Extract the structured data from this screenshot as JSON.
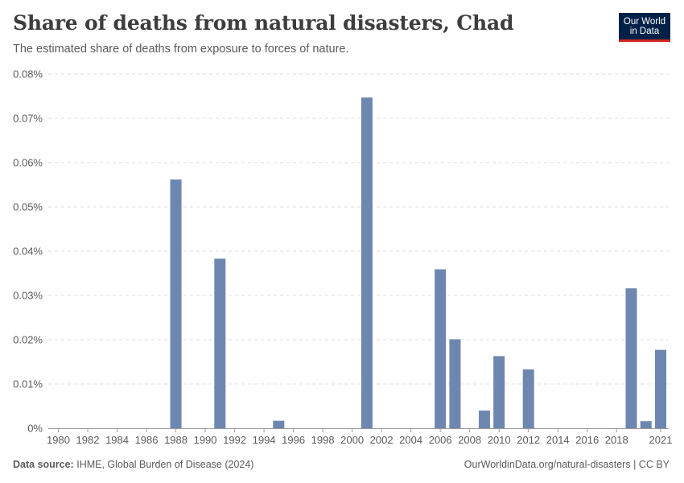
{
  "header": {
    "title": "Share of deaths from natural disasters, Chad",
    "subtitle": "The estimated share of deaths from exposure to forces of nature."
  },
  "logo": {
    "line1": "Our World",
    "line2": "in Data"
  },
  "footer": {
    "source_label": "Data source:",
    "source_text": "IHME, Global Burden of Disease (2024)",
    "right_text": "OurWorldinData.org/natural-disasters | CC BY"
  },
  "colors": {
    "bar": "#6d87b0",
    "grid": "#dddddd",
    "axis": "#999999"
  },
  "chart_data": {
    "type": "bar",
    "title": "Share of deaths from natural disasters, Chad",
    "xlabel": "",
    "ylabel": "",
    "ylim": [
      0,
      0.08
    ],
    "yticks": [
      0,
      0.01,
      0.02,
      0.03,
      0.04,
      0.05,
      0.06,
      0.07,
      0.08
    ],
    "ytick_labels": [
      "0%",
      "0.01%",
      "0.02%",
      "0.03%",
      "0.04%",
      "0.05%",
      "0.06%",
      "0.07%",
      "0.08%"
    ],
    "xlim": [
      1980,
      2021
    ],
    "xtick_labels": [
      "1980",
      "1982",
      "1984",
      "1986",
      "1988",
      "1990",
      "1992",
      "1994",
      "1996",
      "1998",
      "2000",
      "2002",
      "2004",
      "2006",
      "2008",
      "2010",
      "2012",
      "2014",
      "2016",
      "2018",
      "2021"
    ],
    "grid": true,
    "unit": "%",
    "bars": [
      {
        "year": 1988,
        "value": 0.0562
      },
      {
        "year": 1991,
        "value": 0.0383
      },
      {
        "year": 1995,
        "value": 0.0017
      },
      {
        "year": 2001,
        "value": 0.0747
      },
      {
        "year": 2006,
        "value": 0.0359
      },
      {
        "year": 2007,
        "value": 0.0201
      },
      {
        "year": 2009,
        "value": 0.004
      },
      {
        "year": 2010,
        "value": 0.0163
      },
      {
        "year": 2012,
        "value": 0.0133
      },
      {
        "year": 2019,
        "value": 0.0316
      },
      {
        "year": 2020,
        "value": 0.0016
      },
      {
        "year": 2021,
        "value": 0.0177
      }
    ]
  }
}
